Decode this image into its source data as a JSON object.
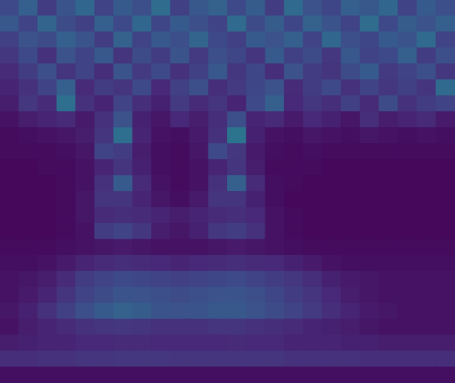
{
  "chart_data": {
    "type": "heatmap",
    "tick_labels": false,
    "color": "viridis",
    "xlim": [
      0,
      24
    ],
    "ylim": [
      0,
      24
    ],
    "color_range": [
      0,
      1
    ],
    "cells": [
      [
        0.22,
        0.3,
        0.18,
        0.26,
        0.33,
        0.2,
        0.28,
        0.24,
        0.35,
        0.19,
        0.27,
        0.31,
        0.22,
        0.29,
        0.18,
        0.34,
        0.25,
        0.21,
        0.3,
        0.27,
        0.33,
        0.2,
        0.28,
        0.24
      ],
      [
        0.27,
        0.2,
        0.32,
        0.23,
        0.19,
        0.3,
        0.22,
        0.33,
        0.21,
        0.28,
        0.24,
        0.2,
        0.34,
        0.23,
        0.29,
        0.21,
        0.31,
        0.26,
        0.2,
        0.35,
        0.22,
        0.29,
        0.25,
        0.3
      ],
      [
        0.19,
        0.25,
        0.23,
        0.3,
        0.26,
        0.18,
        0.31,
        0.2,
        0.27,
        0.24,
        0.32,
        0.22,
        0.19,
        0.28,
        0.25,
        0.3,
        0.2,
        0.33,
        0.24,
        0.21,
        0.28,
        0.26,
        0.34,
        0.2
      ],
      [
        0.16,
        0.22,
        0.14,
        0.25,
        0.2,
        0.27,
        0.15,
        0.23,
        0.18,
        0.26,
        0.17,
        0.24,
        0.21,
        0.15,
        0.28,
        0.19,
        0.23,
        0.16,
        0.27,
        0.2,
        0.22,
        0.3,
        0.18,
        0.24
      ],
      [
        0.12,
        0.18,
        0.24,
        0.15,
        0.2,
        0.13,
        0.26,
        0.17,
        0.22,
        0.14,
        0.19,
        0.27,
        0.16,
        0.21,
        0.13,
        0.25,
        0.18,
        0.15,
        0.23,
        0.28,
        0.17,
        0.2,
        0.24,
        0.16
      ],
      [
        0.1,
        0.14,
        0.2,
        0.3,
        0.12,
        0.18,
        0.15,
        0.22,
        0.11,
        0.19,
        0.24,
        0.13,
        0.17,
        0.21,
        0.25,
        0.12,
        0.18,
        0.22,
        0.14,
        0.2,
        0.16,
        0.19,
        0.15,
        0.34
      ],
      [
        0.08,
        0.16,
        0.12,
        0.36,
        0.14,
        0.1,
        0.2,
        0.13,
        0.09,
        0.17,
        0.12,
        0.15,
        0.1,
        0.22,
        0.3,
        0.11,
        0.16,
        0.13,
        0.19,
        0.12,
        0.23,
        0.14,
        0.18,
        0.2
      ],
      [
        0.05,
        0.08,
        0.1,
        0.12,
        0.07,
        0.14,
        0.25,
        0.09,
        0.06,
        0.11,
        0.08,
        0.13,
        0.24,
        0.1,
        0.12,
        0.07,
        0.11,
        0.09,
        0.06,
        0.13,
        0.08,
        0.1,
        0.12,
        0.07
      ],
      [
        0.03,
        0.04,
        0.05,
        0.06,
        0.08,
        0.15,
        0.36,
        0.1,
        0.05,
        0.04,
        0.07,
        0.14,
        0.38,
        0.09,
        0.05,
        0.04,
        0.06,
        0.05,
        0.04,
        0.06,
        0.05,
        0.04,
        0.05,
        0.04
      ],
      [
        0.03,
        0.03,
        0.03,
        0.04,
        0.06,
        0.2,
        0.18,
        0.08,
        0.04,
        0.03,
        0.06,
        0.22,
        0.16,
        0.07,
        0.04,
        0.03,
        0.04,
        0.03,
        0.03,
        0.03,
        0.03,
        0.03,
        0.03,
        0.03
      ],
      [
        0.02,
        0.02,
        0.03,
        0.03,
        0.05,
        0.1,
        0.15,
        0.09,
        0.04,
        0.03,
        0.05,
        0.1,
        0.15,
        0.08,
        0.03,
        0.03,
        0.03,
        0.02,
        0.02,
        0.02,
        0.02,
        0.02,
        0.02,
        0.02
      ],
      [
        0.02,
        0.02,
        0.02,
        0.03,
        0.05,
        0.14,
        0.28,
        0.12,
        0.05,
        0.03,
        0.05,
        0.14,
        0.3,
        0.12,
        0.04,
        0.03,
        0.02,
        0.02,
        0.02,
        0.02,
        0.02,
        0.02,
        0.02,
        0.02
      ],
      [
        0.02,
        0.02,
        0.02,
        0.03,
        0.06,
        0.15,
        0.15,
        0.1,
        0.06,
        0.04,
        0.07,
        0.15,
        0.15,
        0.09,
        0.04,
        0.02,
        0.02,
        0.02,
        0.02,
        0.02,
        0.02,
        0.02,
        0.02,
        0.02
      ],
      [
        0.02,
        0.02,
        0.02,
        0.03,
        0.06,
        0.12,
        0.13,
        0.12,
        0.1,
        0.08,
        0.1,
        0.12,
        0.13,
        0.11,
        0.05,
        0.03,
        0.02,
        0.02,
        0.02,
        0.02,
        0.02,
        0.02,
        0.02,
        0.02
      ],
      [
        0.02,
        0.02,
        0.02,
        0.03,
        0.05,
        0.18,
        0.2,
        0.16,
        0.08,
        0.06,
        0.09,
        0.16,
        0.18,
        0.14,
        0.05,
        0.03,
        0.02,
        0.02,
        0.02,
        0.02,
        0.02,
        0.02,
        0.02,
        0.02
      ],
      [
        0.03,
        0.03,
        0.03,
        0.04,
        0.05,
        0.06,
        0.07,
        0.06,
        0.05,
        0.05,
        0.05,
        0.06,
        0.07,
        0.06,
        0.05,
        0.04,
        0.03,
        0.03,
        0.03,
        0.03,
        0.03,
        0.03,
        0.03,
        0.03
      ],
      [
        0.04,
        0.04,
        0.05,
        0.07,
        0.1,
        0.12,
        0.13,
        0.12,
        0.11,
        0.1,
        0.11,
        0.12,
        0.13,
        0.12,
        0.11,
        0.09,
        0.07,
        0.05,
        0.04,
        0.04,
        0.04,
        0.04,
        0.04,
        0.04
      ],
      [
        0.05,
        0.06,
        0.08,
        0.12,
        0.18,
        0.2,
        0.22,
        0.21,
        0.2,
        0.19,
        0.2,
        0.21,
        0.22,
        0.2,
        0.18,
        0.16,
        0.13,
        0.09,
        0.07,
        0.06,
        0.05,
        0.05,
        0.05,
        0.05
      ],
      [
        0.05,
        0.07,
        0.1,
        0.15,
        0.2,
        0.23,
        0.26,
        0.25,
        0.24,
        0.23,
        0.24,
        0.25,
        0.26,
        0.24,
        0.21,
        0.18,
        0.15,
        0.11,
        0.08,
        0.06,
        0.05,
        0.05,
        0.05,
        0.05
      ],
      [
        0.06,
        0.09,
        0.14,
        0.19,
        0.24,
        0.28,
        0.31,
        0.29,
        0.26,
        0.25,
        0.26,
        0.27,
        0.27,
        0.25,
        0.23,
        0.2,
        0.17,
        0.13,
        0.1,
        0.07,
        0.06,
        0.05,
        0.05,
        0.05
      ],
      [
        0.05,
        0.08,
        0.1,
        0.12,
        0.14,
        0.15,
        0.16,
        0.15,
        0.14,
        0.14,
        0.14,
        0.15,
        0.15,
        0.14,
        0.13,
        0.12,
        0.1,
        0.09,
        0.08,
        0.06,
        0.05,
        0.05,
        0.05,
        0.05
      ],
      [
        0.08,
        0.09,
        0.1,
        0.1,
        0.11,
        0.11,
        0.12,
        0.12,
        0.11,
        0.11,
        0.11,
        0.11,
        0.12,
        0.11,
        0.11,
        0.1,
        0.1,
        0.1,
        0.09,
        0.09,
        0.08,
        0.08,
        0.08,
        0.08
      ],
      [
        0.13,
        0.13,
        0.14,
        0.14,
        0.15,
        0.15,
        0.16,
        0.16,
        0.16,
        0.15,
        0.15,
        0.15,
        0.15,
        0.15,
        0.15,
        0.14,
        0.14,
        0.14,
        0.14,
        0.13,
        0.13,
        0.13,
        0.13,
        0.13
      ],
      [
        0.04,
        0.04,
        0.04,
        0.04,
        0.04,
        0.04,
        0.04,
        0.04,
        0.04,
        0.04,
        0.04,
        0.04,
        0.04,
        0.04,
        0.04,
        0.04,
        0.04,
        0.04,
        0.04,
        0.04,
        0.04,
        0.04,
        0.04,
        0.04
      ]
    ]
  }
}
